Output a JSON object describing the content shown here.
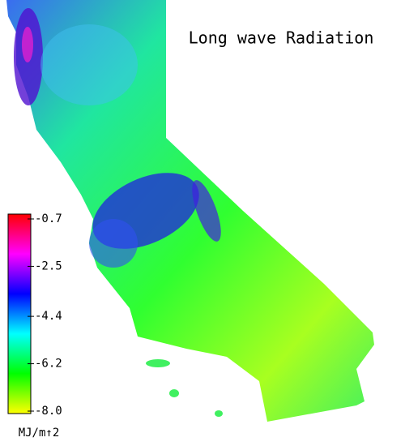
{
  "title": "Long wave Radiation",
  "colorbar": {
    "label": "MJ/m↑2",
    "lim": [
      -8,
      -0.7
    ],
    "ticks": [
      -0.7,
      -2.5,
      -4.4,
      -6.2,
      {
        "value": -8,
        "label": "-8.0"
      }
    ],
    "colors": [
      "#ffff00",
      "#00ff00",
      "#00ffff",
      "#0000ff",
      "#ff00ff",
      "#ff0000"
    ]
  }
}
